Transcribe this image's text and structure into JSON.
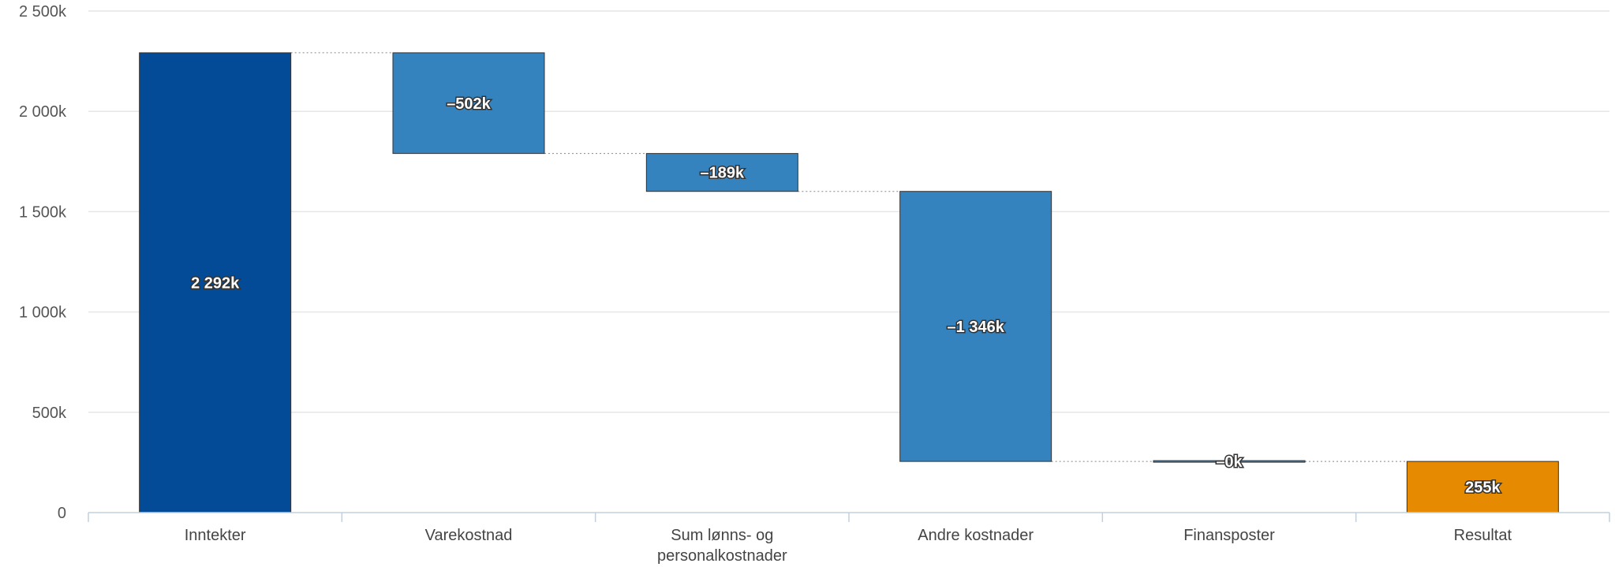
{
  "chart_data": {
    "type": "bar",
    "subtype": "waterfall",
    "title": "",
    "xlabel": "",
    "ylabel": "",
    "ylim": [
      0,
      2500
    ],
    "y_ticks": [
      0,
      500,
      1000,
      1500,
      2000,
      2500
    ],
    "y_tick_labels": [
      "0",
      "500k",
      "1 000k",
      "1 500k",
      "2 000k",
      "2 500k"
    ],
    "grid": true,
    "legend": "none",
    "categories": [
      "Inntekter",
      "Varekostnad",
      "Sum lønns- og personalkostnader",
      "Andre kostnader",
      "Finansposter",
      "Resultat"
    ],
    "category_label_lines": [
      [
        "Inntekter"
      ],
      [
        "Varekostnad"
      ],
      [
        "Sum lønns- og",
        "personalkostnader"
      ],
      [
        "Andre kostnader"
      ],
      [
        "Finansposter"
      ],
      [
        "Resultat"
      ]
    ],
    "values": [
      2292,
      -502,
      -189,
      -1346,
      0,
      255
    ],
    "bar_kind": [
      "total",
      "delta",
      "delta",
      "delta",
      "delta",
      "result"
    ],
    "data_labels": [
      "2 292k",
      "–502k",
      "–189k",
      "–1 346k",
      "–0k",
      "255k"
    ],
    "colors": {
      "total": "#034b97",
      "delta": "#3483bf",
      "result": "#e58a01",
      "grid": "#e6e6e6",
      "connector": "#888888",
      "axis": "#c0d0e0"
    }
  }
}
